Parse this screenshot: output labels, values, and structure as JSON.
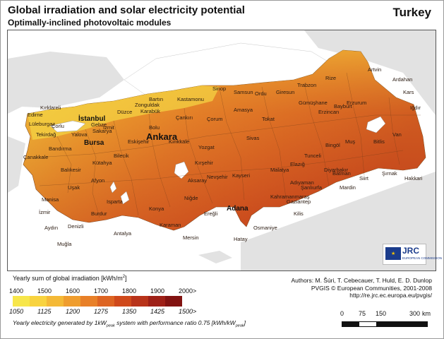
{
  "header": {
    "title": "Global irradiation and solar electricity potential",
    "subtitle": "Optimally-inclined photovoltaic modules",
    "country": "Turkey"
  },
  "map": {
    "cities_major": [
      "Ankara",
      "İstanbul",
      "Bursa",
      "Adana"
    ],
    "cities": [
      "Edirne",
      "Kırklareli",
      "Lüleburgaz",
      "Tekirdağ",
      "Çorlu",
      "Gebze",
      "Sakarya",
      "İzmit",
      "Düzce",
      "Zonguldak",
      "Bartın",
      "Karabük",
      "Kastamonu",
      "Sinop",
      "Samsun",
      "Ordu",
      "Giresun",
      "Trabzon",
      "Rize",
      "Artvin",
      "Ardahan",
      "Kars",
      "Iğdır",
      "Erzurum",
      "Erzincan",
      "Bayburt",
      "Gümüşhane",
      "Tokat",
      "Amasya",
      "Çorum",
      "Çankırı",
      "Kırıkkale",
      "Yozgat",
      "Sivas",
      "Kırşehir",
      "Nevşehir",
      "Kayseri",
      "Malatya",
      "Elazığ",
      "Tunceli",
      "Bingöl",
      "Muş",
      "Bitlis",
      "Van",
      "Batman",
      "Siirt",
      "Şırnak",
      "Hakkari",
      "Diyarbakır",
      "Mardin",
      "Şanlıurfa",
      "Adıyaman",
      "Gaziantep",
      "Kilis",
      "Osmaniye",
      "Hatay",
      "Kahramanmaraş",
      "Niğde",
      "Aksaray",
      "Konya",
      "Karaman",
      "Mersin",
      "Antalya",
      "Burdur",
      "Isparta",
      "Afyon",
      "Kütahya",
      "Uşak",
      "Manisa",
      "İzmir",
      "Aydın",
      "Denizli",
      "Muğla",
      "Balıkesir",
      "Çanakkale",
      "Bandırma",
      "Bilecik",
      "Eskişehir",
      "Yalova",
      "Bolu",
      "Ereğli"
    ]
  },
  "logo": {
    "name": "JRC",
    "subtitle": "EUROPEAN COMMISSION",
    "stars": "★"
  },
  "legend": {
    "title_pre": "Yearly sum of global irradiation [kWh/m",
    "title_sup": "2",
    "title_post": "]",
    "irradiation_ticks": [
      "1400",
      "1500",
      "1600",
      "1700",
      "1800",
      "1900",
      "2000>"
    ],
    "electricity_ticks": [
      "1050",
      "1125",
      "1200",
      "1275",
      "1350",
      "1425",
      "1500>"
    ],
    "colors": [
      "#f7e64a",
      "#f8d33f",
      "#f4b936",
      "#ef9d2e",
      "#e88028",
      "#dd6422",
      "#cf491b",
      "#b8331a",
      "#9e2017",
      "#821311"
    ],
    "note_a": "Yearly electricity generated by 1kW",
    "note_b": "peak",
    "note_c": " system with performance ratio 0.75 [kWh/kW",
    "note_d": "peak",
    "note_e": "]"
  },
  "credits": {
    "authors": "Authors: M. Šúri, T. Cebecauer, T. Huld, E. D. Dunlop",
    "pvgis": "PVGIS © European Communities, 2001-2008",
    "url": "http://re.jrc.ec.europa.eu/pvgis/"
  },
  "scale": {
    "labels": [
      "0",
      "75",
      "150",
      "300"
    ],
    "unit": "km"
  }
}
